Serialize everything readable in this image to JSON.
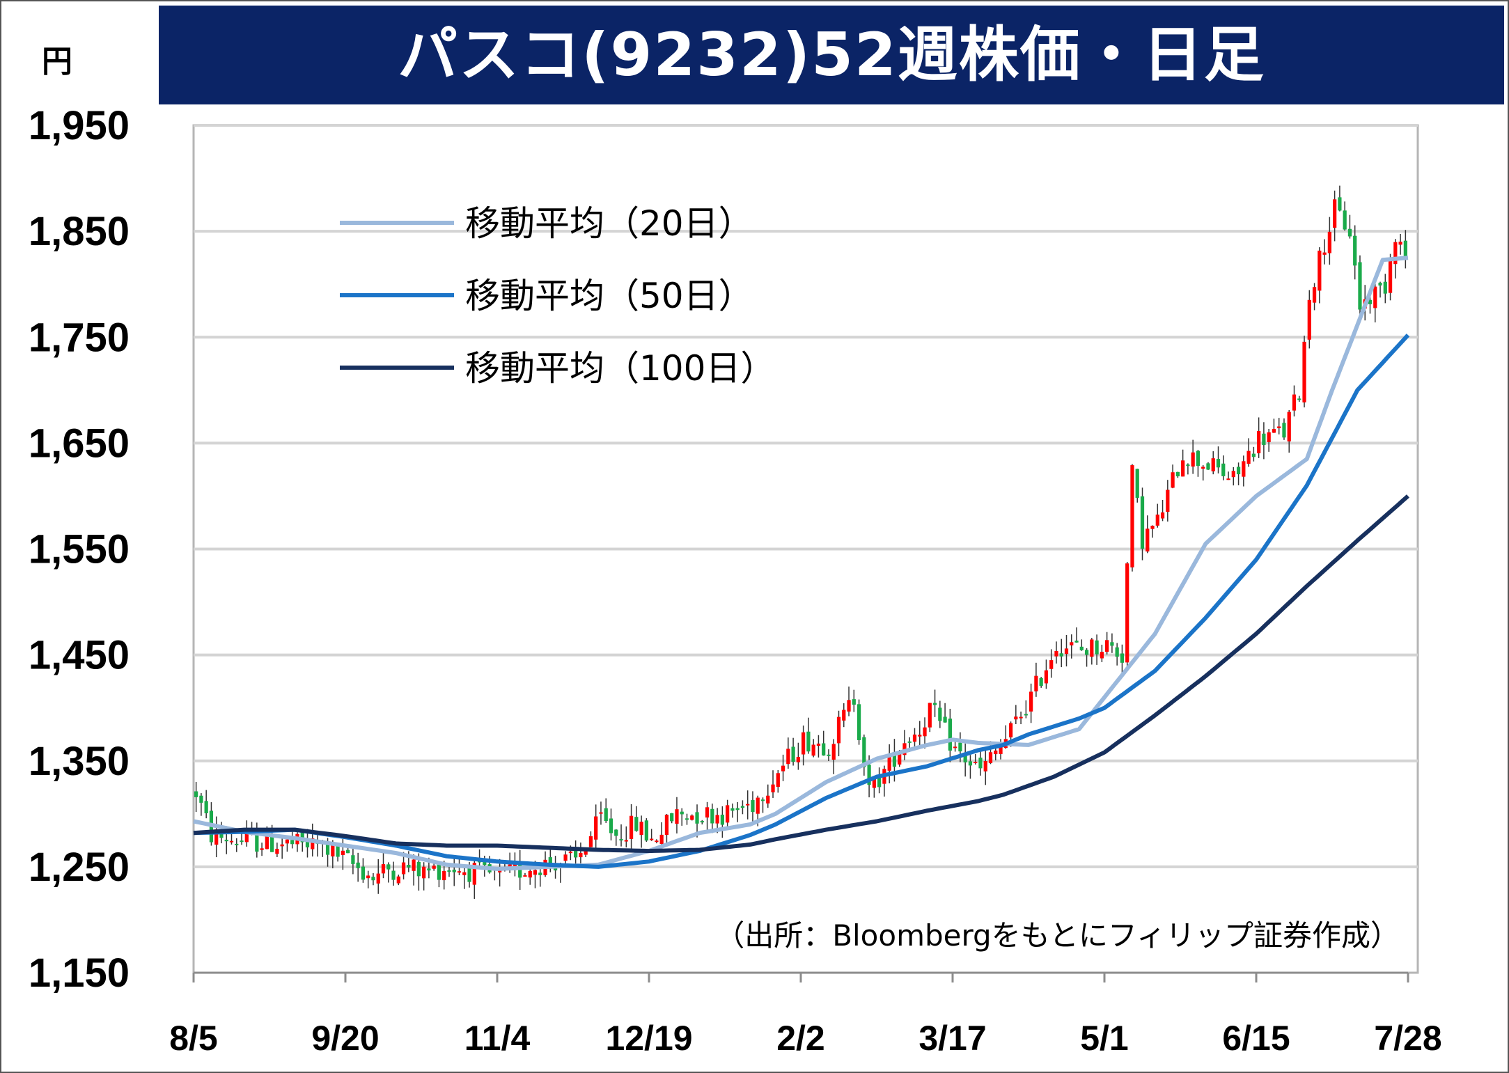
{
  "title": "パスコ(9232)52週株価・日足",
  "unit": "円",
  "source": "（出所：Bloombergをもとにフィリップ証券作成）",
  "chart_data": {
    "type": "candlestick",
    "ylim": [
      1150,
      1950
    ],
    "yticks": [
      1950,
      1850,
      1750,
      1650,
      1550,
      1450,
      1350,
      1250,
      1150
    ],
    "ytick_labels": [
      "1,950",
      "1,850",
      "1,750",
      "1,650",
      "1,550",
      "1,450",
      "1,350",
      "1,250",
      "1,150"
    ],
    "xticks": [
      "8/5",
      "9/20",
      "11/4",
      "12/19",
      "2/2",
      "3/17",
      "5/1",
      "6/15",
      "7/28"
    ],
    "n_days": 240,
    "grid": true,
    "legend_position": "top-left",
    "colors": {
      "up": "#ff0000",
      "down": "#1aaa4a",
      "ma20": "#9ab8dc",
      "ma50": "#1b74c8",
      "ma100": "#17305e",
      "title_bg": "#0b2466"
    },
    "series": [
      {
        "name": "移動平均（20日）",
        "color": "#9ab8dc",
        "x": [
          0,
          10,
          20,
          30,
          40,
          50,
          60,
          70,
          80,
          90,
          100,
          110,
          115,
          125,
          135,
          145,
          150,
          155,
          165,
          175,
          180,
          185,
          190,
          200,
          210,
          220,
          225,
          235,
          240
        ],
        "y": [
          1293,
          1283,
          1277,
          1270,
          1263,
          1252,
          1248,
          1250,
          1252,
          1265,
          1282,
          1290,
          1300,
          1330,
          1352,
          1365,
          1370,
          1367,
          1365,
          1380,
          1410,
          1440,
          1470,
          1555,
          1600,
          1635,
          1700,
          1823,
          1825
        ]
      },
      {
        "name": "移動平均（50日）",
        "color": "#1b74c8",
        "x": [
          0,
          10,
          20,
          30,
          40,
          50,
          60,
          70,
          80,
          90,
          100,
          110,
          115,
          125,
          135,
          145,
          155,
          160,
          165,
          175,
          180,
          190,
          200,
          210,
          220,
          225,
          230,
          240
        ],
        "y": [
          1282,
          1283,
          1285,
          1278,
          1270,
          1260,
          1255,
          1252,
          1250,
          1255,
          1265,
          1280,
          1290,
          1315,
          1335,
          1345,
          1360,
          1365,
          1375,
          1390,
          1400,
          1435,
          1485,
          1540,
          1610,
          1655,
          1700,
          1752
        ]
      },
      {
        "name": "移動平均（100日）",
        "color": "#17305e",
        "x": [
          0,
          10,
          20,
          30,
          40,
          50,
          60,
          70,
          80,
          90,
          100,
          110,
          115,
          125,
          135,
          145,
          155,
          160,
          170,
          180,
          190,
          200,
          210,
          220,
          230,
          240
        ],
        "y": [
          1282,
          1285,
          1285,
          1279,
          1272,
          1270,
          1270,
          1268,
          1266,
          1265,
          1266,
          1271,
          1276,
          1285,
          1293,
          1303,
          1312,
          1318,
          1335,
          1358,
          1393,
          1430,
          1470,
          1515,
          1558,
          1600
        ]
      }
    ],
    "candle_levels": {
      "x": [
        0,
        3,
        8,
        15,
        25,
        30,
        35,
        38,
        42,
        45,
        50,
        55,
        60,
        65,
        70,
        75,
        80,
        83,
        87,
        90,
        95,
        100,
        105,
        110,
        115,
        120,
        125,
        130,
        133,
        136,
        140,
        143,
        145,
        150,
        155,
        160,
        165,
        170,
        175,
        180,
        183,
        185,
        187,
        190,
        195,
        200,
        205,
        210,
        215,
        218,
        220,
        223,
        225,
        228,
        230,
        235,
        237,
        240
      ],
      "y": [
        1320,
        1280,
        1275,
        1272,
        1270,
        1255,
        1240,
        1248,
        1250,
        1245,
        1250,
        1245,
        1240,
        1248,
        1255,
        1255,
        1295,
        1280,
        1290,
        1275,
        1300,
        1300,
        1300,
        1310,
        1340,
        1370,
        1365,
        1410,
        1320,
        1340,
        1370,
        1380,
        1400,
        1360,
        1340,
        1370,
        1410,
        1460,
        1455,
        1460,
        1450,
        1620,
        1560,
        1575,
        1640,
        1630,
        1615,
        1655,
        1660,
        1700,
        1790,
        1840,
        1870,
        1850,
        1780,
        1800,
        1850,
        1812
      ]
    }
  }
}
